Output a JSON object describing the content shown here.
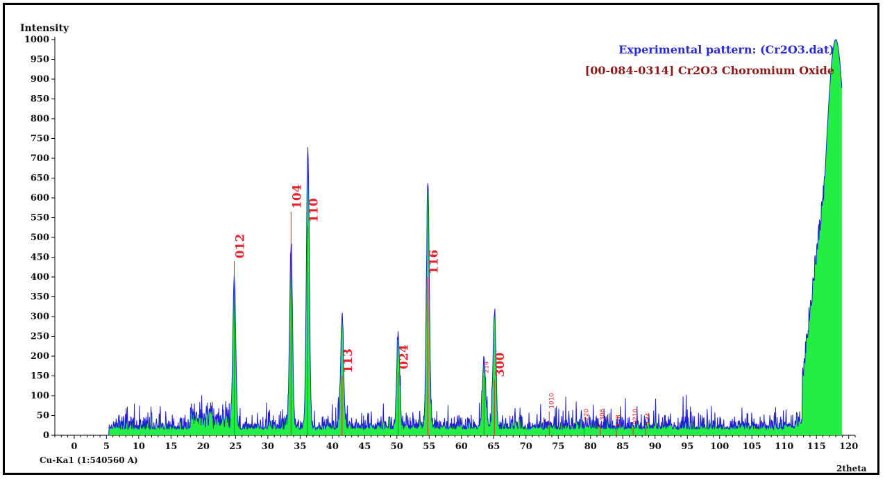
{
  "chart_data": {
    "type": "line",
    "ylabel": "Intensity",
    "xlabel": "2theta",
    "radiation": "Cu-Ka1 (1:540560 A)",
    "xlim": [
      -3,
      121
    ],
    "ylim": [
      0,
      1000
    ],
    "x_ticks": [
      0,
      5,
      10,
      15,
      20,
      25,
      30,
      35,
      40,
      45,
      50,
      55,
      60,
      65,
      70,
      75,
      80,
      85,
      90,
      95,
      100,
      105,
      110,
      115,
      120
    ],
    "y_ticks": [
      0,
      50,
      100,
      150,
      200,
      250,
      300,
      350,
      400,
      450,
      500,
      550,
      600,
      650,
      700,
      750,
      800,
      850,
      900,
      950,
      1000
    ],
    "legend": [
      {
        "name": "Experimental pattern: (Cr2O3.dat)",
        "color": "#2a2ad6"
      },
      {
        "name": "[00-084-0314] Cr2O3 Choromium Oxide",
        "color": "#8b1a1a"
      }
    ],
    "fill_color": "#22ee44",
    "line_color": "#2020d0",
    "major_peaks": [
      {
        "x": 24.8,
        "y": 380
      },
      {
        "x": 33.6,
        "y": 450
      },
      {
        "x": 36.2,
        "y": 700
      },
      {
        "x": 41.5,
        "y": 265
      },
      {
        "x": 50.2,
        "y": 235
      },
      {
        "x": 54.8,
        "y": 605
      },
      {
        "x": 63.5,
        "y": 180
      },
      {
        "x": 65.1,
        "y": 280
      },
      {
        "x": 118.0,
        "y": 1000
      }
    ],
    "reflections": [
      {
        "hkl": "012",
        "x": 24.8,
        "y": 440,
        "major": true
      },
      {
        "hkl": "104",
        "x": 33.6,
        "y": 565,
        "major": true
      },
      {
        "hkl": "110",
        "x": 36.2,
        "y": 530,
        "major": true
      },
      {
        "hkl": "113",
        "x": 41.5,
        "y": 150,
        "major": true
      },
      {
        "hkl": "024",
        "x": 50.2,
        "y": 160,
        "major": true
      },
      {
        "hkl": "116",
        "x": 54.8,
        "y": 400,
        "major": true
      },
      {
        "hkl": "300",
        "x": 65.1,
        "y": 140,
        "major": true
      },
      {
        "hkl": "214",
        "x": 63.5,
        "y": 150,
        "major": false
      },
      {
        "hkl": "1010",
        "x": 73.6,
        "y": 60,
        "major": false
      },
      {
        "hkl": "220",
        "x": 79.0,
        "y": 30,
        "major": false
      },
      {
        "hkl": "306",
        "x": 81.5,
        "y": 30,
        "major": false
      },
      {
        "hkl": "128",
        "x": 84.0,
        "y": 15,
        "major": false
      },
      {
        "hkl": "0210",
        "x": 86.6,
        "y": 20,
        "major": false
      },
      {
        "hkl": "134",
        "x": 88.5,
        "y": 20,
        "major": false
      }
    ],
    "grid": false
  }
}
